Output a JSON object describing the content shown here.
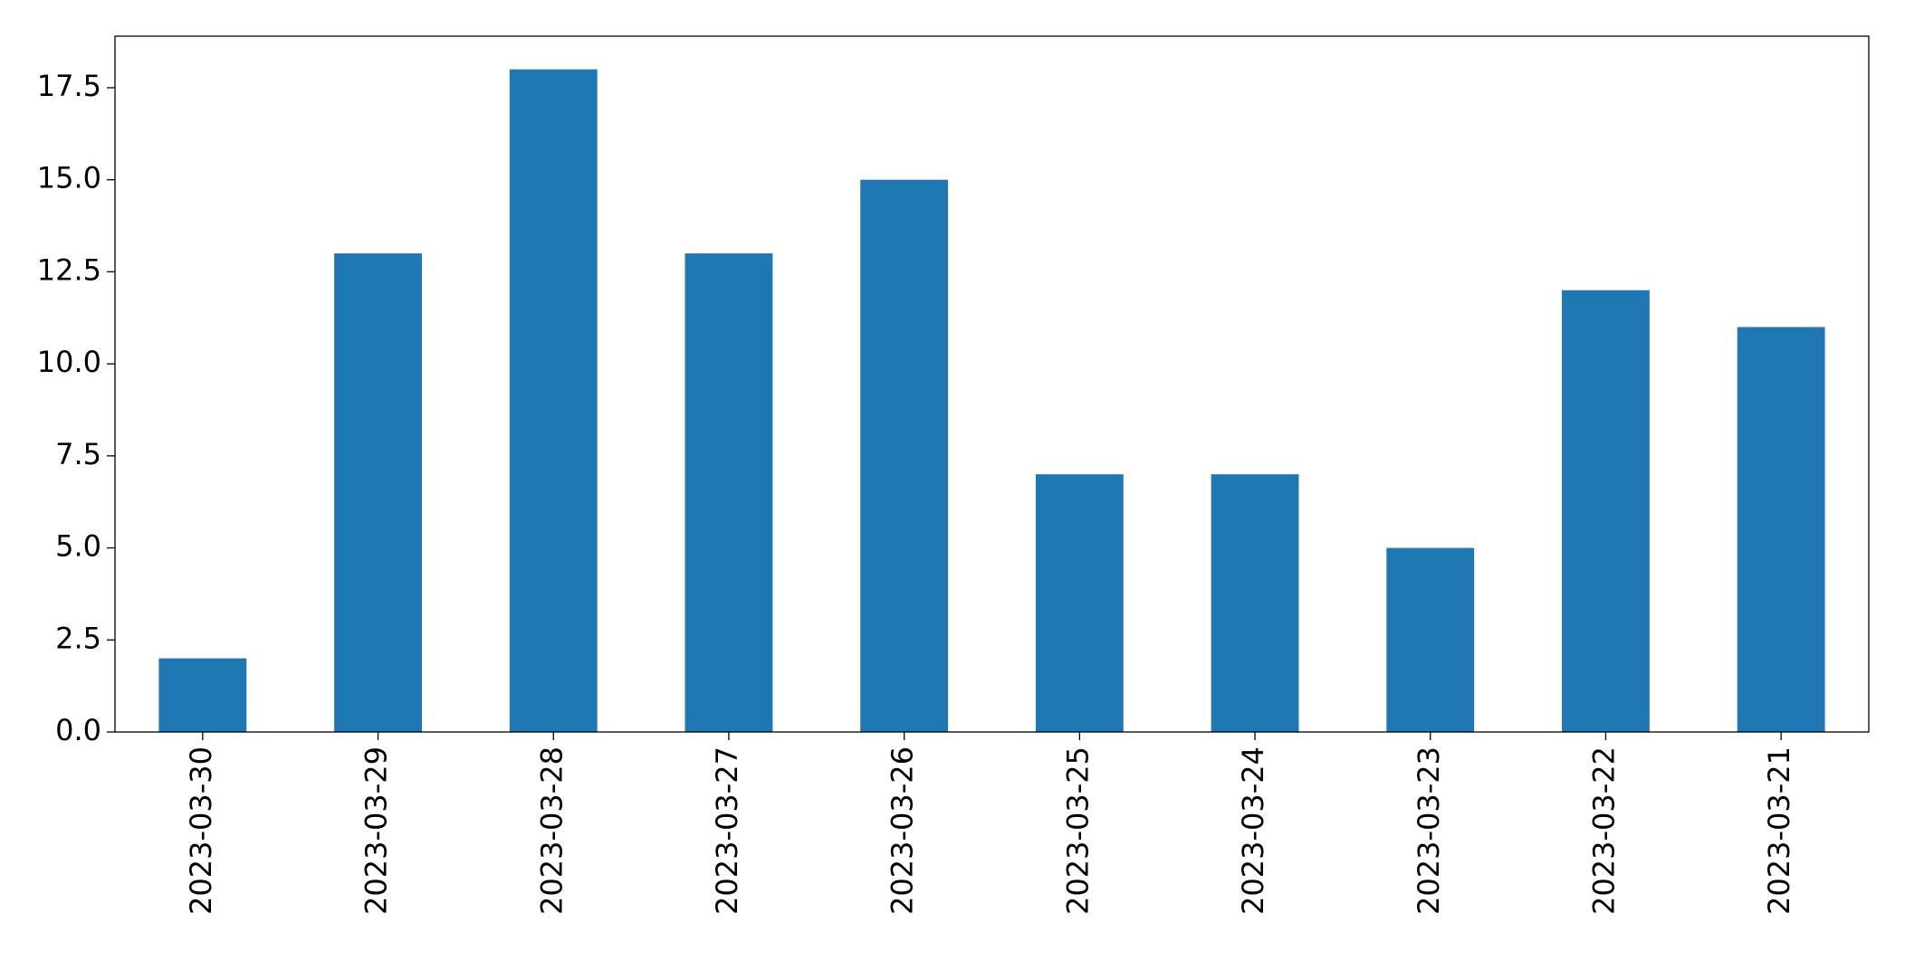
{
  "chart_data": {
    "type": "bar",
    "categories": [
      "2023-03-30",
      "2023-03-29",
      "2023-03-28",
      "2023-03-27",
      "2023-03-26",
      "2023-03-25",
      "2023-03-24",
      "2023-03-23",
      "2023-03-22",
      "2023-03-21"
    ],
    "values": [
      2,
      13,
      18,
      13,
      15,
      7,
      7,
      5,
      12,
      11
    ],
    "color": "#1f77b4",
    "ylim": [
      0,
      18.9
    ],
    "yticks": [
      {
        "value": 0,
        "label": "0.0"
      },
      2.5,
      {
        "value": 5,
        "label": "5.0"
      },
      7.5,
      {
        "value": 10,
        "label": "10.0"
      },
      12.5,
      {
        "value": 15,
        "label": "15.0"
      },
      17.5
    ],
    "grid": false
  }
}
